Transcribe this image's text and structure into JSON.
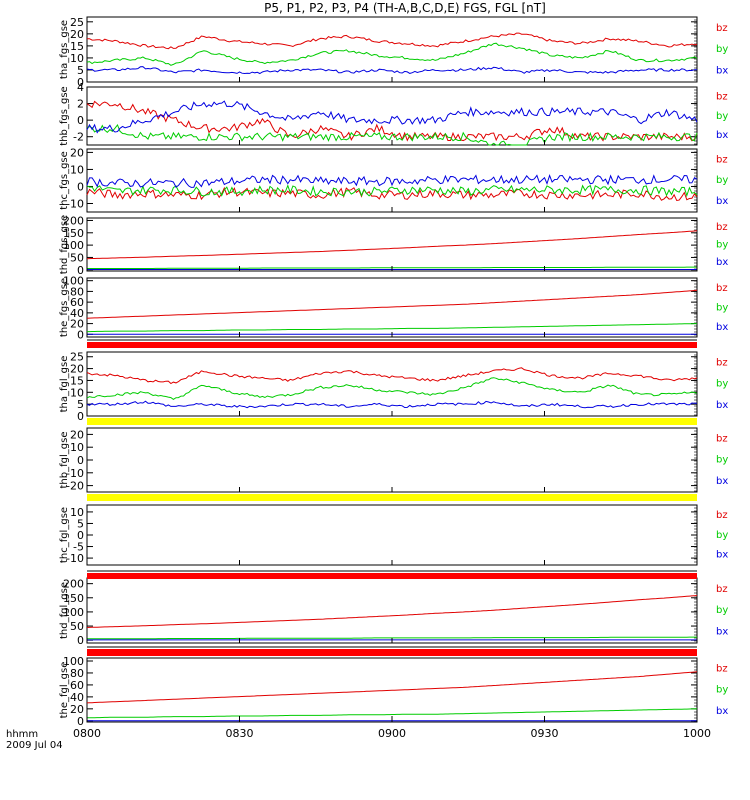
{
  "title": "P5, P1, P2, P3, P4 (TH-A,B,C,D,E) FGS, FGL [nT]",
  "footer": {
    "line1": "hhmm",
    "line2": "2009 Jul 04"
  },
  "colors": {
    "bz": "#e00000",
    "by": "#00cc00",
    "bx": "#0000e0",
    "bar_red": "#ff0000",
    "bar_yellow": "#ffff00",
    "axis": "#000000"
  },
  "chart_data": {
    "type": "line",
    "x_axis": {
      "ticks": [
        "0800",
        "0830",
        "0900",
        "0930",
        "1000"
      ]
    },
    "legend": [
      "bz",
      "by",
      "bx"
    ],
    "panels": [
      {
        "ylabel": "tha_fgs_gse",
        "ylim": [
          0,
          27
        ],
        "yticks": [
          "25",
          "20",
          "15",
          "10",
          "5",
          "0"
        ],
        "kind": "smooth",
        "series": [
          {
            "name": "bz",
            "values": [
              18,
              17,
              15,
              14,
              19,
              17,
              16,
              15,
              18,
              19,
              17,
              16,
              15,
              17,
              19,
              20,
              17,
              16,
              18,
              17,
              15,
              16
            ]
          },
          {
            "name": "by",
            "values": [
              8,
              9,
              10,
              7,
              13,
              10,
              8,
              9,
              12,
              13,
              11,
              10,
              9,
              12,
              16,
              14,
              11,
              10,
              13,
              9,
              9,
              10
            ]
          },
          {
            "name": "bx",
            "values": [
              5,
              5,
              6,
              4,
              5,
              4,
              4,
              5,
              5,
              4,
              5,
              4,
              5,
              5,
              6,
              4,
              5,
              4,
              4,
              5,
              5,
              5
            ]
          }
        ]
      },
      {
        "ylabel": "thb_fgs_gse",
        "ylim": [
          -3,
          4
        ],
        "yticks": [
          "4",
          "2",
          "0",
          "-2"
        ],
        "kind": "noisy",
        "series": [
          {
            "name": "bz",
            "values": [
              2,
              2,
              1,
              0,
              -1,
              -1,
              0,
              -2,
              -1,
              -2,
              -1,
              -2,
              -2,
              -2,
              -2,
              -2,
              -1,
              -2,
              -2,
              -2,
              -2,
              -2
            ]
          },
          {
            "name": "by",
            "values": [
              -1,
              -1,
              -2,
              -2,
              -2,
              -2,
              -2,
              -2,
              -2,
              -2,
              -2,
              -2,
              -2,
              -2,
              -3,
              -3,
              -2,
              -2,
              -2,
              -2,
              -2,
              -2
            ]
          },
          {
            "name": "bx",
            "values": [
              -1,
              -1,
              0,
              1,
              2,
              2,
              1,
              0,
              1,
              0,
              0,
              0,
              0,
              1,
              1,
              1,
              1,
              1,
              1,
              0,
              1,
              0
            ]
          }
        ]
      },
      {
        "ylabel": "thc_fgs_gse",
        "ylim": [
          -15,
          22
        ],
        "yticks": [
          "20",
          "10",
          "0",
          "-10"
        ],
        "kind": "noisy",
        "series": [
          {
            "name": "bz",
            "values": [
              -3,
              -5,
              -4,
              -5,
              -5,
              -3,
              -4,
              -4,
              -5,
              -3,
              -5,
              -5,
              -4,
              -5,
              -5,
              -4,
              -5,
              -5,
              -5,
              -4,
              -6,
              -6
            ]
          },
          {
            "name": "by",
            "values": [
              0,
              -3,
              -2,
              -2,
              -3,
              -3,
              -2,
              -2,
              -3,
              -3,
              -3,
              -2,
              -2,
              -3,
              -2,
              -2,
              -2,
              -2,
              -2,
              -2,
              -3,
              -3
            ]
          },
          {
            "name": "bx",
            "values": [
              3,
              2,
              2,
              2,
              2,
              3,
              4,
              4,
              3,
              3,
              3,
              3,
              4,
              4,
              4,
              4,
              4,
              4,
              4,
              4,
              4,
              4
            ]
          }
        ]
      },
      {
        "ylabel": "thd_fgs_gse",
        "ylim": [
          -5,
          210
        ],
        "yticks": [
          "200",
          "150",
          "100",
          "50",
          "0"
        ],
        "kind": "trend",
        "series": [
          {
            "name": "bz",
            "values": [
              45,
              48,
              51,
              55,
              58,
              62,
              66,
              70,
              74,
              79,
              84,
              89,
              95,
              100,
              106,
              113,
              120,
              127,
              135,
              143,
              150,
              158
            ]
          },
          {
            "name": "by",
            "values": [
              5,
              5,
              5,
              6,
              6,
              6,
              7,
              7,
              7,
              7,
              8,
              8,
              8,
              8,
              9,
              9,
              9,
              9,
              10,
              10,
              10,
              11
            ]
          },
          {
            "name": "bx",
            "values": [
              1,
              1,
              1,
              1,
              1,
              1,
              1,
              1,
              1,
              1,
              1,
              1,
              1,
              1,
              1,
              1,
              1,
              1,
              1,
              1,
              1,
              1
            ]
          }
        ]
      },
      {
        "ylabel": "the_fgs_gse",
        "ylim": [
          -5,
          105
        ],
        "yticks": [
          "100",
          "80",
          "60",
          "40",
          "20",
          "0"
        ],
        "kind": "trend",
        "series": [
          {
            "name": "bz",
            "values": [
              30,
              32,
              34,
              36,
              38,
              40,
              42,
              44,
              46,
              48,
              50,
              52,
              54,
              56,
              59,
              62,
              65,
              68,
              71,
              74,
              78,
              82
            ]
          },
          {
            "name": "by",
            "values": [
              5,
              6,
              6,
              7,
              7,
              8,
              8,
              9,
              9,
              10,
              10,
              11,
              11,
              12,
              13,
              14,
              15,
              16,
              17,
              18,
              19,
              20
            ]
          },
          {
            "name": "bx",
            "values": [
              0,
              0,
              0,
              0,
              0,
              0,
              0,
              0,
              0,
              0,
              0,
              0,
              0,
              0,
              0,
              0,
              0,
              0,
              0,
              0,
              0,
              0
            ]
          }
        ]
      },
      {
        "ylabel": "tha_fgl_gse",
        "ylim": [
          0,
          27
        ],
        "yticks": [
          "25",
          "20",
          "15",
          "10",
          "5",
          "0"
        ],
        "kind": "smooth",
        "series": [
          {
            "name": "bz",
            "values": [
              18,
              17,
              15,
              14,
              19,
              17,
              16,
              15,
              18,
              19,
              17,
              16,
              15,
              17,
              19,
              20,
              17,
              16,
              18,
              17,
              15,
              16
            ]
          },
          {
            "name": "by",
            "values": [
              8,
              9,
              10,
              7,
              13,
              10,
              8,
              9,
              12,
              13,
              11,
              10,
              9,
              12,
              16,
              14,
              11,
              10,
              13,
              9,
              9,
              10
            ]
          },
          {
            "name": "bx",
            "values": [
              5,
              5,
              6,
              4,
              5,
              4,
              4,
              5,
              5,
              4,
              5,
              4,
              5,
              5,
              6,
              4,
              5,
              4,
              4,
              5,
              5,
              5
            ]
          }
        ]
      },
      {
        "ylabel": "thb_fgl_gse",
        "ylim": [
          -25,
          25
        ],
        "yticks": [
          "20",
          "10",
          "0",
          "-10",
          "-20"
        ],
        "kind": "empty",
        "series": []
      },
      {
        "ylabel": "thc_fgl_gse",
        "ylim": [
          -13,
          13
        ],
        "yticks": [
          "10",
          "5",
          "0",
          "-5",
          "-10"
        ],
        "kind": "empty",
        "series": []
      },
      {
        "ylabel": "thd_fgl_gse",
        "ylim": [
          -10,
          220
        ],
        "yticks": [
          "200",
          "150",
          "100",
          "50",
          "0"
        ],
        "kind": "trend",
        "series": [
          {
            "name": "bz",
            "values": [
              45,
              48,
              51,
              55,
              58,
              62,
              66,
              70,
              74,
              79,
              84,
              89,
              95,
              100,
              106,
              113,
              120,
              127,
              135,
              143,
              150,
              158
            ]
          },
          {
            "name": "by",
            "values": [
              5,
              5,
              5,
              6,
              6,
              6,
              7,
              7,
              7,
              7,
              8,
              8,
              8,
              8,
              9,
              9,
              9,
              9,
              10,
              10,
              10,
              11
            ]
          },
          {
            "name": "bx",
            "values": [
              1,
              1,
              1,
              1,
              1,
              1,
              1,
              1,
              1,
              1,
              1,
              1,
              1,
              1,
              1,
              1,
              1,
              1,
              1,
              1,
              1,
              1
            ]
          }
        ]
      },
      {
        "ylabel": "the_fgl_gse",
        "ylim": [
          -2,
          105
        ],
        "yticks": [
          "100",
          "80",
          "60",
          "40",
          "20",
          "0"
        ],
        "kind": "trend",
        "series": [
          {
            "name": "bz",
            "values": [
              30,
              32,
              34,
              36,
              38,
              40,
              42,
              44,
              46,
              48,
              50,
              52,
              54,
              56,
              59,
              62,
              65,
              68,
              71,
              74,
              78,
              82
            ]
          },
          {
            "name": "by",
            "values": [
              5,
              6,
              6,
              7,
              7,
              8,
              8,
              9,
              9,
              10,
              10,
              11,
              11,
              12,
              13,
              14,
              15,
              16,
              17,
              18,
              19,
              20
            ]
          },
          {
            "name": "bx",
            "values": [
              0,
              0,
              0,
              0,
              0,
              0,
              0,
              0,
              0,
              0,
              0,
              0,
              0,
              0,
              0,
              0,
              0,
              0,
              0,
              0,
              0,
              0
            ]
          }
        ]
      }
    ],
    "bars": [
      {
        "after_panel": 4,
        "color": "red"
      },
      {
        "after_panel": 5,
        "color": "yellow"
      },
      {
        "after_panel": 6,
        "color": "yellow"
      },
      {
        "after_panel": 7,
        "color": "red"
      },
      {
        "after_panel": 8,
        "color": "red"
      }
    ]
  }
}
